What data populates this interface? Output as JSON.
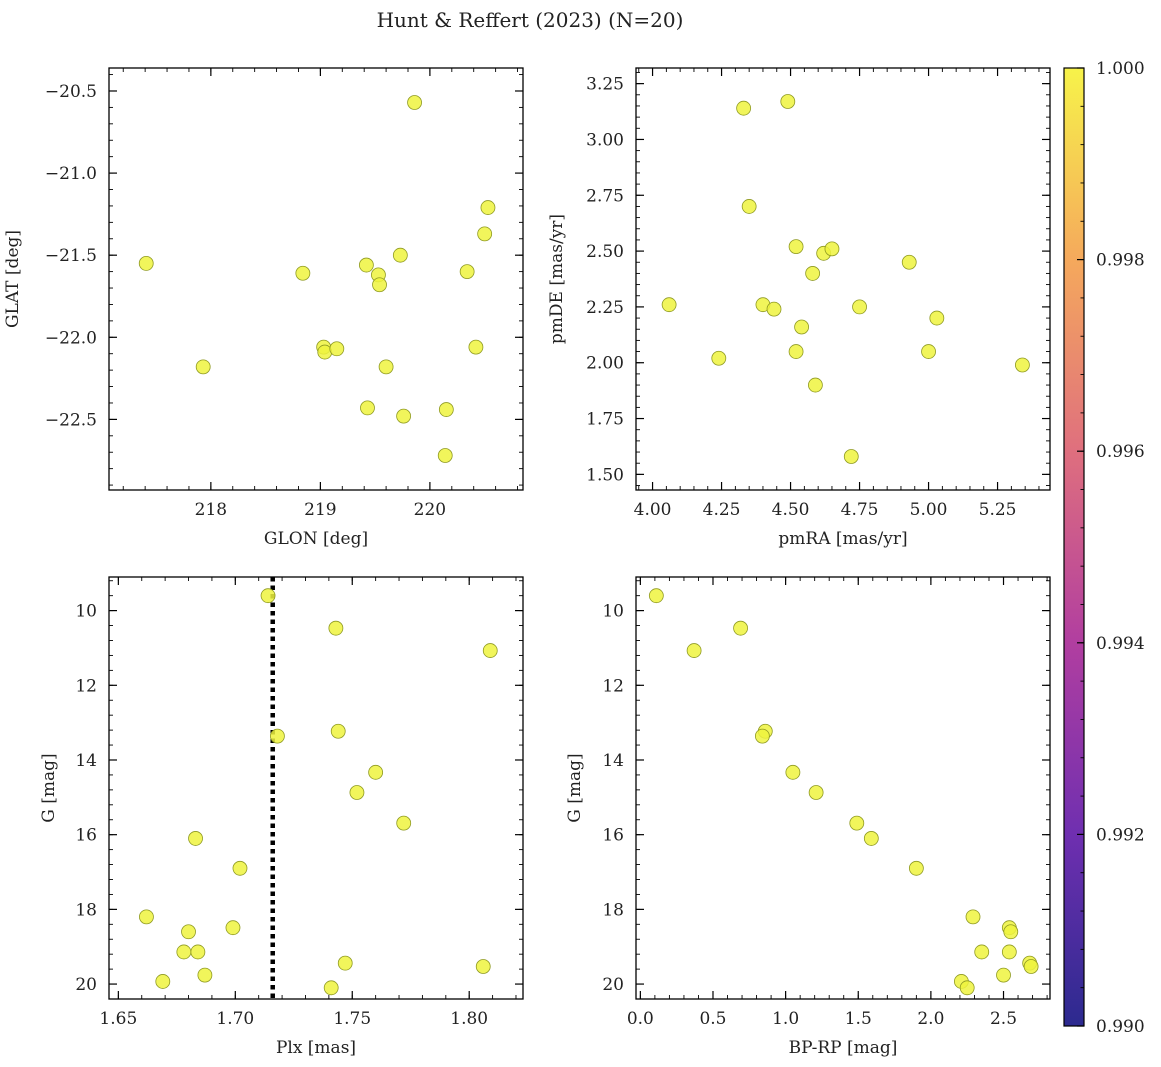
{
  "title": "Hunt & Reffert (2023) (N=20)",
  "colorbar": {
    "min": 0.99,
    "max": 1.0,
    "tick_labels": [
      "0.990",
      "0.992",
      "0.994",
      "0.996",
      "0.998",
      "1.000"
    ],
    "colors": [
      "#2c2a8f",
      "#6f2fb0",
      "#b13ea0",
      "#df6f7e",
      "#f5a95c",
      "#f7f34a"
    ]
  },
  "chart_data": [
    {
      "type": "scatter",
      "xlabel": "GLON [deg]",
      "ylabel": "GLAT [deg]",
      "xlim": [
        217.07,
        220.85
      ],
      "ylim": [
        -22.93,
        -20.36
      ],
      "xticks": [
        218,
        219,
        220
      ],
      "xtick_labels": [
        "218",
        "219",
        "220"
      ],
      "yticks": [
        -20.5,
        -21.0,
        -21.5,
        -22.0,
        -22.5
      ],
      "ytick_labels": [
        "−20.5",
        "−21.0",
        "−21.5",
        "−22.0",
        "−22.5"
      ],
      "x": [
        217.41,
        217.93,
        218.84,
        219.03,
        219.04,
        219.15,
        219.42,
        219.43,
        219.53,
        219.54,
        219.6,
        219.73,
        219.76,
        219.86,
        220.14,
        220.15,
        220.34,
        220.42,
        220.5,
        220.53
      ],
      "y": [
        -21.55,
        -22.18,
        -21.61,
        -22.06,
        -22.09,
        -22.07,
        -21.56,
        -22.43,
        -21.62,
        -21.68,
        -22.18,
        -21.5,
        -22.48,
        -20.57,
        -22.72,
        -22.44,
        -21.6,
        -22.06,
        -21.37,
        -21.21
      ]
    },
    {
      "type": "scatter",
      "xlabel": "pmRA [mas/yr]",
      "ylabel": "pmDE [mas/yr]",
      "xlim": [
        3.94,
        5.44
      ],
      "ylim": [
        1.43,
        3.32
      ],
      "xticks": [
        4.0,
        4.25,
        4.5,
        4.75,
        5.0,
        5.25
      ],
      "xtick_labels": [
        "4.00",
        "4.25",
        "4.50",
        "4.75",
        "5.00",
        "5.25"
      ],
      "yticks": [
        1.5,
        1.75,
        2.0,
        2.25,
        2.5,
        2.75,
        3.0,
        3.25
      ],
      "ytick_labels": [
        "1.50",
        "1.75",
        "2.00",
        "2.25",
        "2.50",
        "2.75",
        "3.00",
        "3.25"
      ],
      "x": [
        4.06,
        4.24,
        4.33,
        4.35,
        4.4,
        4.44,
        4.49,
        4.52,
        4.52,
        4.54,
        4.58,
        4.59,
        4.62,
        4.65,
        4.72,
        4.75,
        4.93,
        5.0,
        5.03,
        5.34
      ],
      "y": [
        2.26,
        2.02,
        3.14,
        2.7,
        2.26,
        2.24,
        3.17,
        2.52,
        2.05,
        2.16,
        2.4,
        1.9,
        2.49,
        2.51,
        1.58,
        2.25,
        2.45,
        2.05,
        2.2,
        1.99
      ]
    },
    {
      "type": "scatter",
      "xlabel": "Plx [mas]",
      "ylabel": "G [mag]",
      "xlim": [
        1.646,
        1.823
      ],
      "ylim": [
        20.4,
        9.1
      ],
      "yinverted": true,
      "vline": 1.716,
      "xticks": [
        1.65,
        1.7,
        1.75,
        1.8
      ],
      "xtick_labels": [
        "1.65",
        "1.70",
        "1.75",
        "1.80"
      ],
      "yticks": [
        10,
        12,
        14,
        16,
        18,
        20
      ],
      "ytick_labels": [
        "10",
        "12",
        "14",
        "16",
        "18",
        "20"
      ],
      "x": [
        1.714,
        1.743,
        1.809,
        1.718,
        1.744,
        1.76,
        1.752,
        1.772,
        1.683,
        1.702,
        1.662,
        1.68,
        1.699,
        1.678,
        1.684,
        1.687,
        1.669,
        1.747,
        1.741,
        1.806
      ],
      "y": [
        9.6,
        10.47,
        11.07,
        13.36,
        13.23,
        14.33,
        14.87,
        15.69,
        16.1,
        16.9,
        18.2,
        18.6,
        18.49,
        19.14,
        19.14,
        19.76,
        19.93,
        19.44,
        20.1,
        19.53
      ]
    },
    {
      "type": "scatter",
      "xlabel": "BP-RP [mag]",
      "ylabel": "G [mag]",
      "xlim": [
        -0.03,
        2.82
      ],
      "ylim": [
        20.4,
        9.1
      ],
      "yinverted": true,
      "xticks": [
        0.0,
        0.5,
        1.0,
        1.5,
        2.0,
        2.5
      ],
      "xtick_labels": [
        "0.0",
        "0.5",
        "1.0",
        "1.5",
        "2.0",
        "2.5"
      ],
      "yticks": [
        10,
        12,
        14,
        16,
        18,
        20
      ],
      "ytick_labels": [
        "10",
        "12",
        "14",
        "16",
        "18",
        "20"
      ],
      "x": [
        0.11,
        0.69,
        0.37,
        0.86,
        0.84,
        1.05,
        1.21,
        1.49,
        1.59,
        1.9,
        2.29,
        2.54,
        2.55,
        2.35,
        2.54,
        2.5,
        2.21,
        2.68,
        2.25,
        2.69
      ],
      "y": [
        9.6,
        10.47,
        11.07,
        13.23,
        13.36,
        14.33,
        14.87,
        15.69,
        16.1,
        16.9,
        18.2,
        18.49,
        18.6,
        19.14,
        19.14,
        19.76,
        19.93,
        19.44,
        20.1,
        19.53
      ]
    }
  ]
}
